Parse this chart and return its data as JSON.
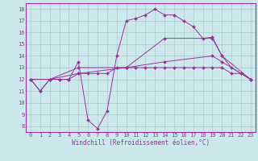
{
  "xlabel": "Windchill (Refroidissement éolien,°C)",
  "xlim": [
    -0.5,
    23.5
  ],
  "ylim": [
    7.5,
    18.5
  ],
  "yticks": [
    8,
    9,
    10,
    11,
    12,
    13,
    14,
    15,
    16,
    17,
    18
  ],
  "xticks": [
    0,
    1,
    2,
    3,
    4,
    5,
    6,
    7,
    8,
    9,
    10,
    11,
    12,
    13,
    14,
    15,
    16,
    17,
    18,
    19,
    20,
    21,
    22,
    23
  ],
  "bg_color": "#cce8ec",
  "line_color": "#993399",
  "grid_color": "#aacccc",
  "lines": [
    {
      "x": [
        0,
        1,
        2,
        3,
        4,
        5,
        6,
        7,
        8,
        9,
        10,
        11,
        12,
        13,
        14,
        15,
        16,
        17,
        18,
        19,
        20,
        21,
        22,
        23
      ],
      "y": [
        12,
        11,
        12,
        12,
        12,
        13.5,
        8.5,
        7.8,
        9.3,
        14,
        17,
        17.2,
        17.5,
        18,
        17.5,
        17.5,
        17,
        16.5,
        15.5,
        15.6,
        14,
        13,
        12.5,
        12
      ]
    },
    {
      "x": [
        0,
        1,
        2,
        3,
        4,
        5,
        6,
        7,
        8,
        9,
        10,
        11,
        12,
        13,
        14,
        15,
        16,
        17,
        18,
        19,
        20,
        21,
        22,
        23
      ],
      "y": [
        12,
        11,
        12,
        12,
        12,
        12.5,
        12.5,
        12.5,
        12.5,
        13,
        13,
        13,
        13,
        13,
        13,
        13,
        13,
        13,
        13,
        13,
        13,
        12.5,
        12.5,
        12
      ]
    },
    {
      "x": [
        0,
        2,
        5,
        10,
        14,
        19,
        20,
        23
      ],
      "y": [
        12,
        12,
        13,
        13,
        15.5,
        15.5,
        14,
        12
      ]
    },
    {
      "x": [
        0,
        2,
        5,
        10,
        14,
        19,
        20,
        23
      ],
      "y": [
        12,
        12,
        12.5,
        13,
        13.5,
        14,
        13.5,
        12
      ]
    }
  ]
}
